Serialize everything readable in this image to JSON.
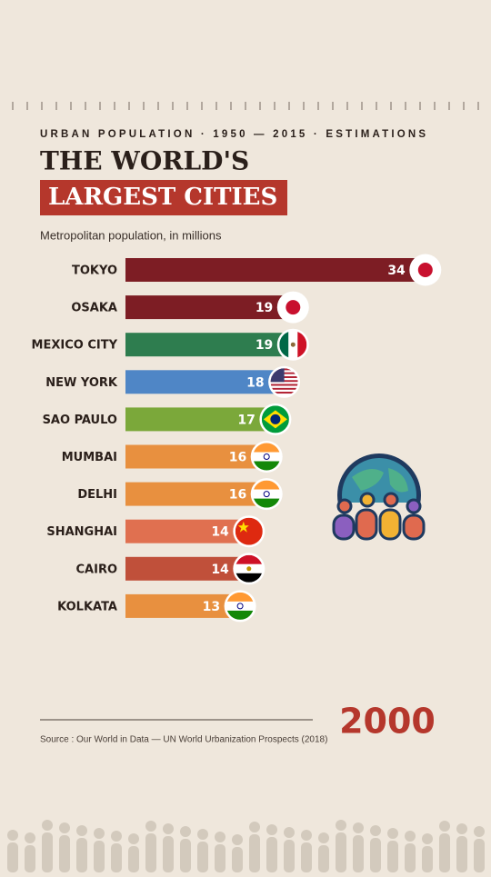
{
  "chart_data": {
    "type": "bar",
    "orientation": "horizontal",
    "subtitle": "URBAN POPULATION · 1950 — 2015 · ESTIMATIONS",
    "title": "THE WORLD'S",
    "title_highlight": "LARGEST CITIES",
    "x_label": "Metropolitan population, in millions",
    "categories": [
      "TOKYO",
      "OSAKA",
      "MEXICO CITY",
      "NEW YORK",
      "SAO PAULO",
      "MUMBAI",
      "DELHI",
      "SHANGHAI",
      "CAIRO",
      "KOLKATA"
    ],
    "values": [
      34,
      19,
      19,
      18,
      17,
      16,
      16,
      14,
      14,
      13
    ],
    "colors": [
      "#7d1d24",
      "#7d1d24",
      "#2e7d4f",
      "#4f86c6",
      "#7ba83a",
      "#e8903f",
      "#e8903f",
      "#e07050",
      "#c0503a",
      "#e8903f"
    ],
    "year": "2000",
    "source": "Source : Our World in Data — UN World Urbanization Prospects (2018)"
  }
}
